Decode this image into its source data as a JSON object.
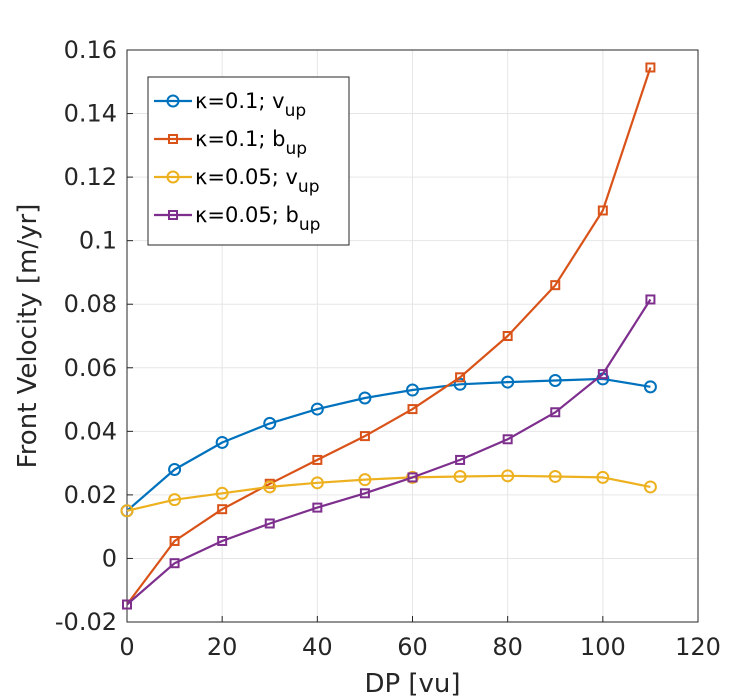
{
  "chart_data": {
    "type": "line",
    "title": "",
    "xlabel": "DP [vu]",
    "ylabel": "Front Velocity [m/yr]",
    "xlim": [
      0,
      120
    ],
    "ylim": [
      -0.02,
      0.16
    ],
    "grid": true,
    "legend_position": "top-left",
    "x_ticks": [
      0,
      20,
      40,
      60,
      80,
      100,
      120
    ],
    "x_tick_labels": [
      "0",
      "20",
      "40",
      "60",
      "80",
      "100",
      "120"
    ],
    "y_ticks": [
      -0.02,
      0,
      0.02,
      0.04,
      0.06,
      0.08,
      0.1,
      0.12,
      0.14,
      0.16
    ],
    "y_tick_labels": [
      "-0.02",
      "0",
      "0.02",
      "0.04",
      "0.06",
      "0.08",
      "0.1",
      "0.12",
      "0.14",
      "0.16"
    ],
    "x": [
      0,
      10,
      20,
      30,
      40,
      50,
      60,
      70,
      80,
      90,
      100,
      110
    ],
    "series": [
      {
        "name_main": "κ=0.1; v",
        "name_sub": "up",
        "color": "#0072BD",
        "marker": "circle",
        "values": [
          0.015,
          0.028,
          0.0365,
          0.0425,
          0.047,
          0.0505,
          0.053,
          0.0548,
          0.0555,
          0.056,
          0.0565,
          0.054
        ]
      },
      {
        "name_main": "κ=0.1; b",
        "name_sub": "up",
        "color": "#D95319",
        "marker": "square",
        "values": [
          -0.0145,
          0.0055,
          0.0155,
          0.0235,
          0.031,
          0.0385,
          0.047,
          0.057,
          0.07,
          0.086,
          0.1095,
          0.1545
        ]
      },
      {
        "name_main": "κ=0.05; v",
        "name_sub": "up",
        "color": "#EDB120",
        "marker": "circle",
        "values": [
          0.015,
          0.0185,
          0.0205,
          0.0225,
          0.0238,
          0.0248,
          0.0255,
          0.0258,
          0.026,
          0.0258,
          0.0255,
          0.0225
        ]
      },
      {
        "name_main": "κ=0.05; b",
        "name_sub": "up",
        "color": "#7E2F8E",
        "marker": "square",
        "values": [
          -0.0145,
          -0.0015,
          0.0055,
          0.011,
          0.016,
          0.0205,
          0.0255,
          0.031,
          0.0375,
          0.046,
          0.058,
          0.0815
        ]
      }
    ]
  }
}
